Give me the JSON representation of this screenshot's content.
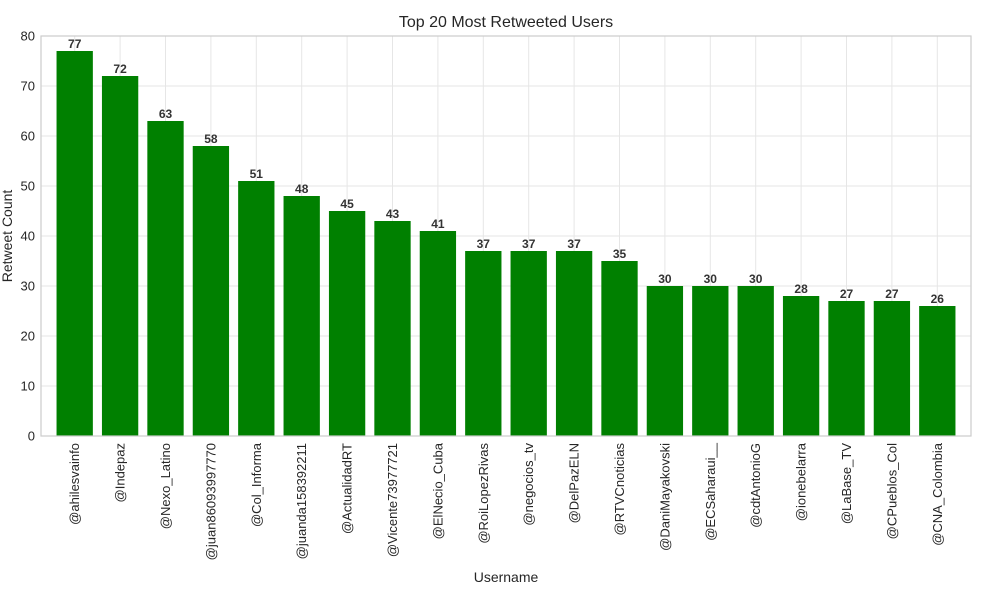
{
  "chart_data": {
    "type": "bar",
    "title": "Top 20 Most Retweeted Users",
    "xlabel": "Username",
    "ylabel": "Retweet Count",
    "ylim": [
      0,
      80
    ],
    "yticks": [
      0,
      10,
      20,
      30,
      40,
      50,
      60,
      70,
      80
    ],
    "grid": true,
    "bar_color": "#008000",
    "categories": [
      "@ahilesvainfo",
      "@Indepaz",
      "@Nexo_Latino",
      "@juan86093997770",
      "@Col_Informa",
      "@juanda158392211",
      "@ActualidadRT",
      "@Vicente73977721",
      "@ElNecio_Cuba",
      "@RoiLopezRivas",
      "@negocios_tv",
      "@DelPazELN",
      "@RTVCnoticias",
      "@DaniMayakovski",
      "@ECSaharaui__",
      "@cdtAntonioG",
      "@ionebelarra",
      "@LaBase_TV",
      "@CPueblos_Col",
      "@CNA_Colombia"
    ],
    "values": [
      77,
      72,
      63,
      58,
      51,
      48,
      45,
      43,
      41,
      37,
      37,
      37,
      35,
      30,
      30,
      30,
      28,
      27,
      27,
      26
    ]
  }
}
